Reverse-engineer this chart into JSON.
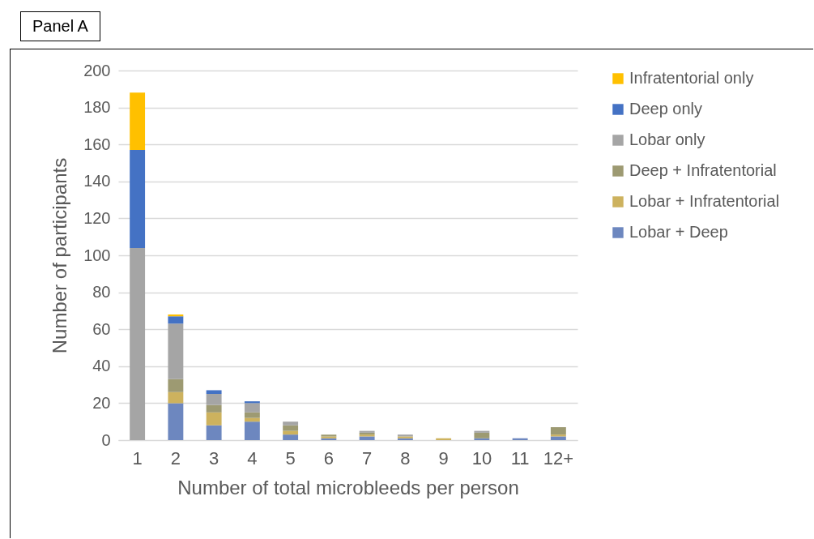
{
  "chart_data": {
    "type": "bar",
    "title": "Panel A",
    "xlabel": "Number of total microbleeds per person",
    "ylabel": "Number of participants",
    "stacked": true,
    "categories": [
      "1",
      "2",
      "3",
      "4",
      "5",
      "6",
      "7",
      "8",
      "9",
      "10",
      "11",
      "12+"
    ],
    "series": [
      {
        "name": "Lobar + Deep",
        "color": "#6d87bf",
        "values": [
          0,
          20,
          8,
          10,
          3,
          1,
          2,
          1,
          0,
          1,
          1,
          2
        ]
      },
      {
        "name": "Lobar + Infratentorial",
        "color": "#cdb25e",
        "values": [
          0,
          6,
          7,
          2,
          2,
          1,
          1,
          1,
          1,
          0,
          0,
          1
        ]
      },
      {
        "name": "Deep + Infratentorial",
        "color": "#9d9a72",
        "values": [
          0,
          7,
          4,
          3,
          3,
          1,
          1,
          0,
          0,
          3,
          0,
          4
        ]
      },
      {
        "name": "Lobar only",
        "color": "#a5a5a5",
        "values": [
          104,
          30,
          6,
          5,
          2,
          0,
          1,
          1,
          0,
          1,
          0,
          0
        ]
      },
      {
        "name": "Deep only",
        "color": "#4472c4",
        "values": [
          53,
          4,
          2,
          1,
          0,
          0,
          0,
          0,
          0,
          0,
          0,
          0
        ]
      },
      {
        "name": "Infratentorial only",
        "color": "#ffc000",
        "values": [
          31,
          1,
          0,
          0,
          0,
          0,
          0,
          0,
          0,
          0,
          0,
          0
        ]
      }
    ],
    "ylim": [
      0,
      200
    ],
    "yticks": [
      0,
      20,
      40,
      60,
      80,
      100,
      120,
      140,
      160,
      180,
      200
    ],
    "grid": "y",
    "legend": "right"
  }
}
